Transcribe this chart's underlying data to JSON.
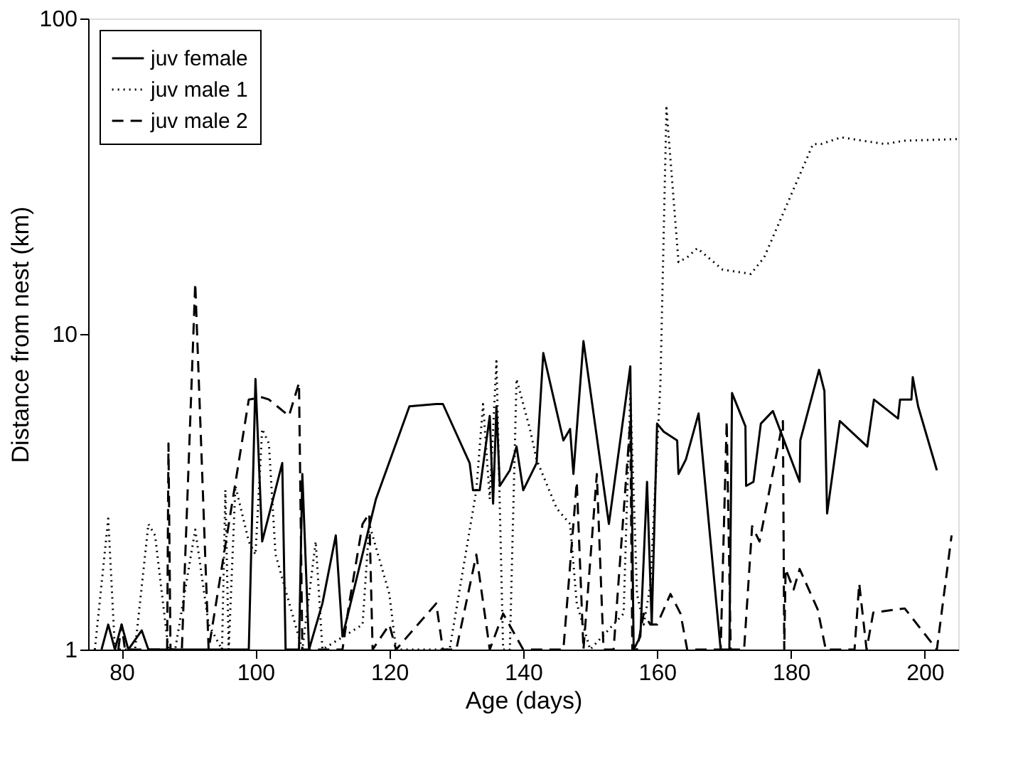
{
  "chart_data": {
    "type": "line",
    "xlabel": "Age (days)",
    "ylabel": "Distance from nest (km)",
    "xlim": [
      75,
      205
    ],
    "xticks": [
      80,
      100,
      120,
      140,
      160,
      180,
      200
    ],
    "ylim": [
      1,
      100
    ],
    "yticks": [
      1,
      10,
      100
    ],
    "log": "y",
    "grid": false,
    "legend": "top left",
    "marker": "none",
    "series": [
      {
        "name": "juv female",
        "color": "#000000",
        "line_style": "solid",
        "x": [
          77,
          78,
          79,
          80,
          81,
          83,
          84,
          99,
          100,
          101,
          104,
          104.5,
          106.5,
          107,
          108,
          110,
          112,
          113,
          118,
          123,
          127,
          128,
          132,
          132.5,
          133.5,
          135,
          135.5,
          136,
          136.5,
          138,
          139,
          140,
          142,
          143,
          146,
          147,
          147.5,
          149,
          152.8,
          156,
          156.5,
          157.5,
          158.5,
          159.2,
          160,
          161,
          163,
          163.2,
          164.3,
          166.2,
          169.5,
          170.8,
          171.2,
          173.2,
          173.3,
          174.4,
          175.5,
          177.3,
          181.3,
          181.4,
          184.2,
          185,
          185.4,
          187.3,
          191.4,
          192.4,
          196,
          196.3,
          198,
          198.2,
          199,
          201.8
        ],
        "values": [
          1,
          1.2,
          1,
          1.2,
          1,
          1.15,
          1,
          1,
          7.2,
          2.2,
          3.9,
          1,
          1,
          3.6,
          1,
          1.4,
          2.3,
          1.1,
          3,
          5.9,
          6,
          6,
          3.9,
          3.2,
          3.2,
          5.5,
          2.9,
          5.9,
          3.3,
          3.7,
          4.4,
          3.2,
          3.9,
          8.7,
          4.6,
          5,
          3.6,
          9.5,
          2.5,
          7.9,
          1,
          1.1,
          3.4,
          1.2,
          5.2,
          4.9,
          4.6,
          3.6,
          4,
          5.6,
          1,
          1,
          6.5,
          5.1,
          3.3,
          3.4,
          5.2,
          5.7,
          3.4,
          4.6,
          7.7,
          6.6,
          2.7,
          5.3,
          4.4,
          6.2,
          5.4,
          6.2,
          6.2,
          7.3,
          5.9,
          3.7
        ]
      },
      {
        "name": "juv male 1",
        "color": "#000000",
        "line_style": "dotted",
        "x": [
          76,
          78,
          79,
          82,
          84,
          85,
          87,
          88,
          91,
          93,
          95,
          95.5,
          96,
          97,
          99,
          100,
          101,
          102,
          103,
          107,
          109,
          110,
          116,
          117,
          120,
          121,
          129,
          133,
          134,
          135,
          136,
          137,
          138,
          139,
          141,
          142,
          145,
          147,
          148,
          150,
          155,
          156,
          157,
          158,
          159,
          160.5,
          161.4,
          163.2,
          164.5,
          166,
          169.8,
          174,
          176,
          183.3,
          184.5,
          187.5,
          194,
          197,
          205
        ],
        "values": [
          1,
          2.6,
          1,
          1,
          2.5,
          2.3,
          1,
          1,
          2.4,
          1.2,
          1,
          3.2,
          1,
          3.3,
          2.2,
          2,
          5,
          4.5,
          2,
          1,
          2.2,
          1,
          1.2,
          2.5,
          1.5,
          1,
          1,
          3.2,
          6,
          3,
          8.2,
          1,
          1,
          7.2,
          5,
          4,
          2.8,
          2.5,
          1.4,
          1,
          1.3,
          6.5,
          1.5,
          1.2,
          1.6,
          7,
          52,
          16.9,
          17.5,
          18.7,
          16,
          15.5,
          17.5,
          40,
          40,
          42,
          40,
          41,
          41.5
        ]
      },
      {
        "name": "juv male 2",
        "color": "#000000",
        "line_style": "dashed",
        "x": [
          79.5,
          80,
          80.5,
          86.8,
          87,
          87.3,
          89,
          91,
          93,
          99,
          101,
          102,
          105,
          106.5,
          107,
          113,
          114,
          116,
          117,
          117.5,
          120,
          121,
          127,
          128,
          130,
          133,
          135,
          137,
          140,
          146,
          148,
          149,
          151,
          152,
          153.5,
          156,
          156.3,
          157,
          158,
          159,
          160,
          162,
          163.5,
          164.5,
          169.5,
          170.4,
          171,
          173,
          174.2,
          175.3,
          178.8,
          179,
          179.2,
          180.4,
          181.3,
          184,
          185.2,
          189.5,
          190.2,
          191.3,
          192.3,
          197,
          201.8,
          204
        ],
        "values": [
          1,
          1.2,
          1,
          1,
          4.5,
          1,
          1,
          14.5,
          1,
          6.2,
          6.3,
          6.2,
          5.5,
          7,
          1,
          1,
          1.4,
          2.5,
          2.7,
          1,
          1.2,
          1,
          1.4,
          1,
          1,
          2,
          1,
          1.3,
          1,
          1,
          3.4,
          1,
          3.6,
          1,
          1,
          5.3,
          1,
          1,
          1.3,
          1.2,
          1.2,
          1.5,
          1.3,
          1,
          1,
          5.3,
          1,
          1,
          2.46,
          2.2,
          5.3,
          1,
          1.8,
          1.55,
          1.8,
          1.34,
          1,
          1,
          1.62,
          1,
          1.31,
          1.35,
          1,
          2.3
        ]
      }
    ]
  }
}
